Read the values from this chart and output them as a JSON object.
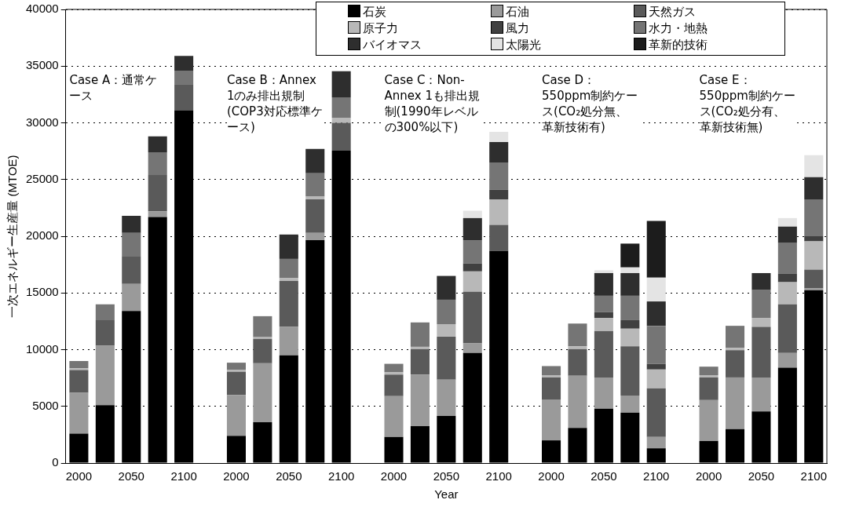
{
  "chart_data": {
    "type": "bar",
    "stacked": true,
    "xlabel": "Year",
    "ylabel": "一次エネルギー生産量 (MTOE)",
    "categories": [
      "2000",
      null,
      "2050",
      null,
      "2100",
      null,
      "2000",
      null,
      "2050",
      null,
      "2100",
      null,
      "2000",
      null,
      "2050",
      null,
      "2100",
      null,
      "2000",
      null,
      "2050",
      null,
      "2100",
      null,
      "2000",
      null,
      "2050",
      null,
      "2100"
    ],
    "ylim": [
      0,
      40000
    ],
    "yticks": [
      0,
      5000,
      10000,
      15000,
      20000,
      25000,
      30000,
      35000,
      40000
    ],
    "grid": "y",
    "legend": "top",
    "annotations": [
      "Case A：通常ケース",
      "Case B：Annex 1のみ排出規制(COP3対応標準ケース)",
      "Case C：Non-Annex 1も排出規制(1990年レベルの300%以下)",
      "Case D：550ppm制約ケース(CO₂処分無、革新技術有)",
      "Case E：550ppm制約ケース(CO₂処分有、革新技術無)"
    ],
    "series": [
      {
        "name": "石炭",
        "color": "#000000",
        "values": [
          2600,
          5100,
          13400,
          21700,
          31100,
          null,
          2400,
          3600,
          9500,
          19650,
          27550,
          null,
          2300,
          3250,
          4150,
          9700,
          18700,
          null,
          2000,
          3100,
          4800,
          4450,
          1300,
          null,
          1950,
          3000,
          4550,
          8400,
          15250
        ]
      },
      {
        "name": "石油",
        "color": "#9a9a9a",
        "values": [
          3600,
          5250,
          2400,
          500,
          0,
          null,
          3600,
          5200,
          2500,
          650,
          0,
          null,
          3600,
          4550,
          3200,
          850,
          0,
          null,
          3600,
          4600,
          2750,
          1500,
          1000,
          null,
          3600,
          4550,
          3000,
          1300,
          150
        ]
      },
      {
        "name": "天然ガス",
        "color": "#5a5a5a",
        "values": [
          2000,
          2250,
          2400,
          3200,
          2300,
          null,
          2050,
          2150,
          4050,
          2950,
          2450,
          null,
          1900,
          2250,
          3800,
          4550,
          2300,
          null,
          1950,
          2350,
          4100,
          4350,
          4300,
          null,
          2000,
          2400,
          4450,
          4300,
          1650
        ]
      },
      {
        "name": "原子力",
        "color": "#b8b8b8",
        "values": [
          150,
          0,
          0,
          0,
          0,
          null,
          150,
          150,
          250,
          250,
          450,
          null,
          200,
          200,
          1100,
          1800,
          2250,
          null,
          200,
          250,
          1150,
          1550,
          1650,
          null,
          200,
          200,
          800,
          1950,
          2500
        ]
      },
      {
        "name": "風力",
        "color": "#404040",
        "values": [
          0,
          0,
          0,
          0,
          0,
          null,
          0,
          0,
          0,
          0,
          0,
          null,
          0,
          0,
          0,
          700,
          850,
          null,
          0,
          0,
          500,
          750,
          500,
          null,
          0,
          0,
          0,
          750,
          450
        ]
      },
      {
        "name": "水力・地熱",
        "color": "#757575",
        "values": [
          650,
          1400,
          2100,
          2000,
          1200,
          null,
          650,
          1850,
          1700,
          2050,
          1800,
          null,
          750,
          2150,
          2150,
          2050,
          2400,
          null,
          800,
          2000,
          1450,
          2150,
          3350,
          null,
          750,
          1950,
          2450,
          2700,
          3250
        ]
      },
      {
        "name": "バイオマス",
        "color": "#2e2e2e",
        "values": [
          0,
          0,
          1500,
          1400,
          1300,
          null,
          0,
          0,
          2150,
          2150,
          2300,
          null,
          0,
          0,
          2100,
          1950,
          1800,
          null,
          0,
          0,
          2000,
          2000,
          2150,
          null,
          0,
          0,
          1500,
          1450,
          1950
        ]
      },
      {
        "name": "太陽光",
        "color": "#e4e4e4",
        "values": [
          0,
          0,
          0,
          0,
          0,
          null,
          0,
          0,
          0,
          0,
          0,
          null,
          0,
          0,
          0,
          650,
          900,
          null,
          0,
          0,
          250,
          500,
          2100,
          null,
          0,
          0,
          0,
          750,
          1950
        ]
      },
      {
        "name": "革新的技術",
        "color": "#1c1c1c",
        "values": [
          0,
          0,
          0,
          0,
          0,
          null,
          0,
          0,
          0,
          0,
          0,
          null,
          0,
          0,
          0,
          0,
          0,
          null,
          0,
          0,
          0,
          2100,
          5000,
          null,
          0,
          0,
          0,
          0,
          0
        ]
      }
    ]
  }
}
